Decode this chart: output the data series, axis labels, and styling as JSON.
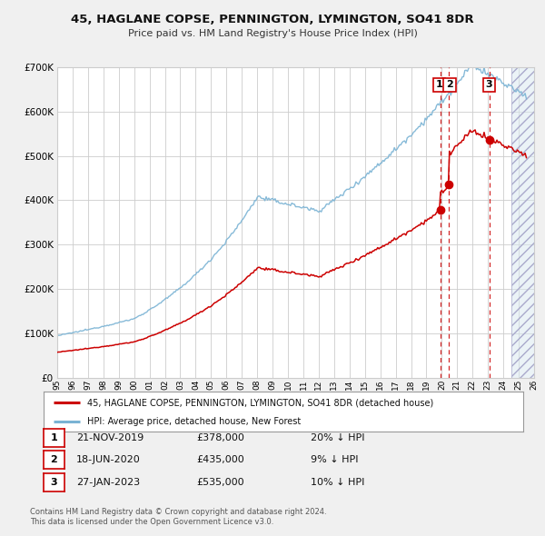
{
  "title": "45, HAGLANE COPSE, PENNINGTON, LYMINGTON, SO41 8DR",
  "subtitle": "Price paid vs. HM Land Registry's House Price Index (HPI)",
  "ylim": [
    0,
    700000
  ],
  "xlim_start": 1995,
  "xlim_end": 2026,
  "hpi_color": "#7ab3d4",
  "price_color": "#cc0000",
  "dashed_line_color": "#cc0000",
  "grid_color": "#cccccc",
  "bg_color": "#f0f0f0",
  "plot_bg_color": "#ffffff",
  "sales": [
    {
      "num": 1,
      "date": "21-NOV-2019",
      "price": 378000,
      "pct": "20%",
      "x_year": 2019.9
    },
    {
      "num": 2,
      "date": "18-JUN-2020",
      "price": 435000,
      "pct": "9%",
      "x_year": 2020.46
    },
    {
      "num": 3,
      "date": "27-JAN-2023",
      "price": 535000,
      "pct": "10%",
      "x_year": 2023.08
    }
  ],
  "legend_label_red": "45, HAGLANE COPSE, PENNINGTON, LYMINGTON, SO41 8DR (detached house)",
  "legend_label_blue": "HPI: Average price, detached house, New Forest",
  "footer_line1": "Contains HM Land Registry data © Crown copyright and database right 2024.",
  "footer_line2": "This data is licensed under the Open Government Licence v3.0.",
  "table_rows": [
    [
      "1",
      "21-NOV-2019",
      "£378,000",
      "20% ↓ HPI"
    ],
    [
      "2",
      "18-JUN-2020",
      "£435,000",
      "9% ↓ HPI"
    ],
    [
      "3",
      "27-JAN-2023",
      "£535,000",
      "10% ↓ HPI"
    ]
  ]
}
